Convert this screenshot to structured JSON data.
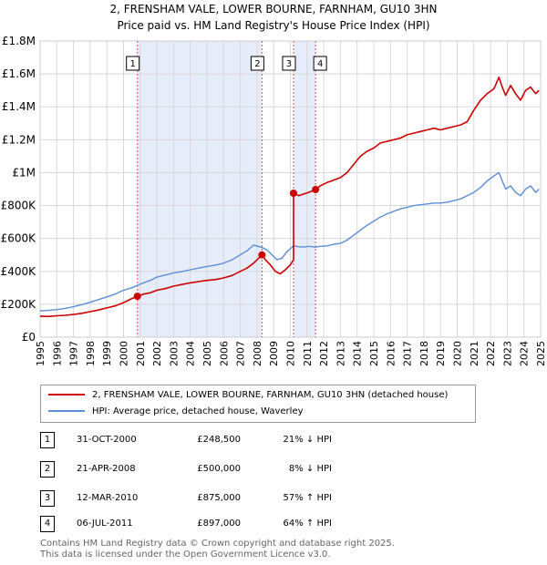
{
  "title_line1": "2, FRENSHAM VALE, LOWER BOURNE, FARNHAM, GU10 3HN",
  "title_line2": "Price paid vs. HM Land Registry's House Price Index (HPI)",
  "colors": {
    "property": "#cc0000",
    "hpi": "#5b8ed6",
    "shade": "#dde6f7",
    "vline": "#e05050"
  },
  "chart_data": {
    "type": "line",
    "xlim": [
      1995,
      2025
    ],
    "ylim": [
      0,
      1800000
    ],
    "y_ticks": [
      0,
      200000,
      400000,
      600000,
      800000,
      1000000,
      1200000,
      1400000,
      1600000,
      1800000
    ],
    "y_tick_labels": [
      "£0",
      "£200K",
      "£400K",
      "£600K",
      "£800K",
      "£1M",
      "£1.2M",
      "£1.4M",
      "£1.6M",
      "£1.8M"
    ],
    "x_ticks": [
      1995,
      1996,
      1997,
      1998,
      1999,
      2000,
      2001,
      2002,
      2003,
      2004,
      2005,
      2006,
      2007,
      2008,
      2009,
      2010,
      2011,
      2012,
      2013,
      2014,
      2015,
      2016,
      2017,
      2018,
      2019,
      2020,
      2021,
      2022,
      2023,
      2024,
      2025
    ],
    "shaded_ranges": [
      [
        2000.83,
        2008.3
      ],
      [
        2010.19,
        2011.51
      ]
    ],
    "series": [
      {
        "name": "2, FRENSHAM VALE, LOWER BOURNE, FARNHAM, GU10 3HN (detached house)",
        "x": [
          1995.0,
          1995.5,
          1996.0,
          1996.5,
          1997.0,
          1997.5,
          1998.0,
          1998.5,
          1999.0,
          1999.5,
          2000.0,
          2000.5,
          2000.83,
          2001.2,
          2001.6,
          2002.0,
          2002.5,
          2003.0,
          2003.5,
          2004.0,
          2004.5,
          2005.0,
          2005.5,
          2006.0,
          2006.5,
          2007.0,
          2007.4,
          2007.8,
          2008.3,
          2008.5,
          2008.8,
          2009.1,
          2009.4,
          2009.7,
          2010.0,
          2010.19,
          2010.19,
          2010.5,
          2010.8,
          2011.1,
          2011.51,
          2011.8,
          2012.2,
          2012.6,
          2013.0,
          2013.4,
          2013.8,
          2014.2,
          2014.6,
          2015.0,
          2015.4,
          2015.8,
          2016.2,
          2016.6,
          2017.0,
          2017.4,
          2017.8,
          2018.2,
          2018.6,
          2019.0,
          2019.4,
          2019.8,
          2020.2,
          2020.6,
          2021.0,
          2021.4,
          2021.8,
          2022.2,
          2022.5,
          2022.7,
          2022.9,
          2023.2,
          2023.5,
          2023.8,
          2024.1,
          2024.4,
          2024.7,
          2024.9
        ],
        "values": [
          128000,
          126000,
          130000,
          133000,
          138000,
          145000,
          155000,
          165000,
          178000,
          190000,
          210000,
          235000,
          248500,
          262000,
          270000,
          285000,
          295000,
          310000,
          320000,
          330000,
          338000,
          345000,
          350000,
          360000,
          375000,
          400000,
          420000,
          450000,
          500000,
          470000,
          440000,
          400000,
          385000,
          410000,
          440000,
          470000,
          875000,
          860000,
          870000,
          880000,
          897000,
          920000,
          940000,
          955000,
          970000,
          1000000,
          1050000,
          1100000,
          1130000,
          1150000,
          1180000,
          1190000,
          1200000,
          1210000,
          1230000,
          1240000,
          1250000,
          1260000,
          1270000,
          1260000,
          1270000,
          1280000,
          1290000,
          1310000,
          1380000,
          1440000,
          1480000,
          1510000,
          1580000,
          1520000,
          1470000,
          1530000,
          1480000,
          1440000,
          1500000,
          1520000,
          1480000,
          1500000
        ]
      },
      {
        "name": "HPI: Average price, detached house, Waverley",
        "x": [
          1995.0,
          1995.5,
          1996.0,
          1996.5,
          1997.0,
          1997.5,
          1998.0,
          1998.5,
          1999.0,
          1999.5,
          2000.0,
          2000.5,
          2000.83,
          2001.2,
          2001.6,
          2002.0,
          2002.5,
          2003.0,
          2003.5,
          2004.0,
          2004.5,
          2005.0,
          2005.5,
          2006.0,
          2006.5,
          2007.0,
          2007.4,
          2007.8,
          2008.3,
          2008.6,
          2008.9,
          2009.2,
          2009.5,
          2009.8,
          2010.19,
          2010.5,
          2010.8,
          2011.1,
          2011.51,
          2011.8,
          2012.2,
          2012.6,
          2013.0,
          2013.4,
          2013.8,
          2014.2,
          2014.6,
          2015.0,
          2015.4,
          2015.8,
          2016.2,
          2016.6,
          2017.0,
          2017.4,
          2017.8,
          2018.2,
          2018.6,
          2019.0,
          2019.4,
          2019.8,
          2020.2,
          2020.6,
          2021.0,
          2021.4,
          2021.8,
          2022.2,
          2022.5,
          2022.7,
          2022.9,
          2023.2,
          2023.5,
          2023.8,
          2024.1,
          2024.4,
          2024.7,
          2024.9
        ],
        "values": [
          160000,
          163000,
          168000,
          175000,
          185000,
          198000,
          212000,
          228000,
          245000,
          262000,
          285000,
          300000,
          315000,
          330000,
          345000,
          365000,
          378000,
          390000,
          398000,
          410000,
          420000,
          430000,
          438000,
          450000,
          470000,
          500000,
          525000,
          560000,
          545000,
          530000,
          500000,
          470000,
          480000,
          520000,
          555000,
          550000,
          548000,
          552000,
          547000,
          552000,
          555000,
          565000,
          570000,
          590000,
          620000,
          650000,
          680000,
          705000,
          730000,
          750000,
          765000,
          780000,
          790000,
          800000,
          805000,
          810000,
          815000,
          815000,
          820000,
          830000,
          840000,
          860000,
          880000,
          910000,
          950000,
          980000,
          1000000,
          950000,
          900000,
          920000,
          880000,
          860000,
          900000,
          920000,
          880000,
          900000
        ]
      }
    ],
    "transactions": [
      {
        "num": "1",
        "x": 2000.83,
        "value": 248500
      },
      {
        "num": "2",
        "x": 2008.3,
        "value": 500000
      },
      {
        "num": "3",
        "x": 2010.19,
        "value": 875000
      },
      {
        "num": "4",
        "x": 2011.51,
        "value": 897000
      }
    ]
  },
  "legend": {
    "property_label": "2, FRENSHAM VALE, LOWER BOURNE, FARNHAM, GU10 3HN (detached house)",
    "hpi_label": "HPI: Average price, detached house, Waverley"
  },
  "transactions_table": [
    {
      "num": "1",
      "date": "31-OCT-2000",
      "price": "£248,500",
      "hpi": "21% ↓ HPI"
    },
    {
      "num": "2",
      "date": "21-APR-2008",
      "price": "£500,000",
      "hpi": "8% ↓ HPI"
    },
    {
      "num": "3",
      "date": "12-MAR-2010",
      "price": "£875,000",
      "hpi": "57% ↑ HPI"
    },
    {
      "num": "4",
      "date": "06-JUL-2011",
      "price": "£897,000",
      "hpi": "64% ↑ HPI"
    }
  ],
  "footer_line1": "Contains HM Land Registry data © Crown copyright and database right 2025.",
  "footer_line2": "This data is licensed under the Open Government Licence v3.0."
}
